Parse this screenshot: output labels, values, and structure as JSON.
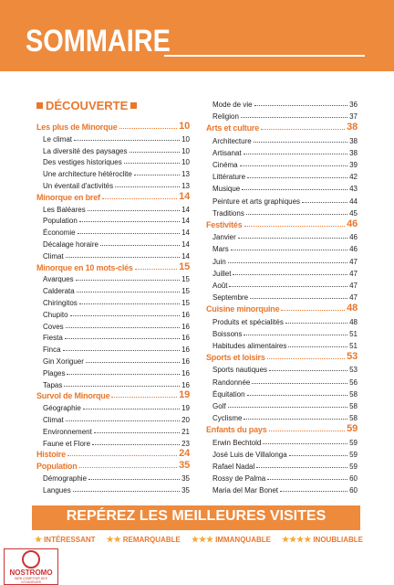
{
  "header": {
    "title": "SOMMAIRE"
  },
  "section": {
    "title": "DÉCOUVERTE"
  },
  "columns": [
    {
      "groups": [
        {
          "title": "Les plus de Minorque",
          "page": "10",
          "items": [
            {
              "label": "Le climat",
              "page": "10"
            },
            {
              "label": "La diversité des paysages",
              "page": "10"
            },
            {
              "label": "Des vestiges historiques",
              "page": "10"
            },
            {
              "label": "Une architecture hétéroclite",
              "page": "13"
            },
            {
              "label": "Un éventail d'activités",
              "page": "13"
            }
          ]
        },
        {
          "title": "Minorque en bref",
          "page": "14",
          "items": [
            {
              "label": "Les Baléares",
              "page": "14"
            },
            {
              "label": "Population",
              "page": "14"
            },
            {
              "label": "Économie",
              "page": "14"
            },
            {
              "label": "Décalage horaire",
              "page": "14"
            },
            {
              "label": "Climat",
              "page": "14"
            }
          ]
        },
        {
          "title": "Minorque en 10 mots-clés",
          "page": "15",
          "items": [
            {
              "label": "Avarques",
              "page": "15"
            },
            {
              "label": "Calderata",
              "page": "15"
            },
            {
              "label": "Chiringitos",
              "page": "15"
            },
            {
              "label": "Chupito",
              "page": "16"
            },
            {
              "label": "Coves",
              "page": "16"
            },
            {
              "label": "Fiesta",
              "page": "16"
            },
            {
              "label": "Finca",
              "page": "16"
            },
            {
              "label": "Gin Xoriguer",
              "page": "16"
            },
            {
              "label": "Plages",
              "page": "16"
            },
            {
              "label": "Tapas",
              "page": "16"
            }
          ]
        },
        {
          "title": "Survol de Minorque",
          "page": "19",
          "items": [
            {
              "label": "Géographie",
              "page": "19"
            },
            {
              "label": "Climat",
              "page": "20"
            },
            {
              "label": "Environnement",
              "page": "21"
            },
            {
              "label": "Faune et Flore",
              "page": "23"
            }
          ]
        },
        {
          "title": "Histoire",
          "page": "24",
          "items": []
        },
        {
          "title": "Population",
          "page": "35",
          "items": [
            {
              "label": "Démographie",
              "page": "35"
            },
            {
              "label": "Langues",
              "page": "35"
            }
          ]
        }
      ]
    },
    {
      "items": [
        {
          "label": "Mode de vie",
          "page": "36"
        },
        {
          "label": "Religion",
          "page": "37"
        }
      ],
      "groups": [
        {
          "title": "Arts et culture",
          "page": "38",
          "items": [
            {
              "label": "Architecture",
              "page": "38"
            },
            {
              "label": "Artisanat",
              "page": "38"
            },
            {
              "label": "Cinéma",
              "page": "39"
            },
            {
              "label": "Littérature",
              "page": "42"
            },
            {
              "label": "Musique",
              "page": "43"
            },
            {
              "label": "Peinture et arts graphiques",
              "page": "44"
            },
            {
              "label": "Traditions",
              "page": "45"
            }
          ]
        },
        {
          "title": "Festivités",
          "page": "46",
          "items": [
            {
              "label": "Janvier",
              "page": "46"
            },
            {
              "label": "Mars",
              "page": "46"
            },
            {
              "label": "Juin",
              "page": "47"
            },
            {
              "label": "Juillet",
              "page": "47"
            },
            {
              "label": "Août",
              "page": "47"
            },
            {
              "label": "Septembre",
              "page": "47"
            }
          ]
        },
        {
          "title": "Cuisine minorquine",
          "page": "48",
          "items": [
            {
              "label": "Produits et spécialités",
              "page": "48"
            },
            {
              "label": "Boissons",
              "page": "51"
            },
            {
              "label": "Habitudes alimentaires",
              "page": "51"
            }
          ]
        },
        {
          "title": "Sports et loisirs",
          "page": "53",
          "items": [
            {
              "label": "Sports nautiques",
              "page": "53"
            },
            {
              "label": "Randonnée",
              "page": "56"
            },
            {
              "label": "Équitation",
              "page": "58"
            },
            {
              "label": "Golf",
              "page": "58"
            },
            {
              "label": "Cyclisme",
              "page": "58"
            }
          ]
        },
        {
          "title": "Enfants du pays",
          "page": "59",
          "items": [
            {
              "label": "Erwin Bechtold",
              "page": "59"
            },
            {
              "label": "José Luis de Villalonga",
              "page": "59"
            },
            {
              "label": "Rafael Nadal",
              "page": "59"
            },
            {
              "label": "Rossy de Palma",
              "page": "60"
            },
            {
              "label": "Maria del Mar Bonet",
              "page": "60"
            }
          ]
        }
      ]
    }
  ],
  "banner": {
    "title": "REPÉREZ LES MEILLEURES VISITES",
    "ratings": [
      {
        "stars": 1,
        "label": "INTÉRESSANT"
      },
      {
        "stars": 2,
        "label": "REMARQUABLE"
      },
      {
        "stars": 3,
        "label": "IMMANQUABLE"
      },
      {
        "stars": 4,
        "label": "INOUBLIABLE"
      }
    ]
  },
  "logo": {
    "name": "NOSTROMO",
    "tagline": "WEB COMPTOIR DES VOYAGEURS"
  }
}
